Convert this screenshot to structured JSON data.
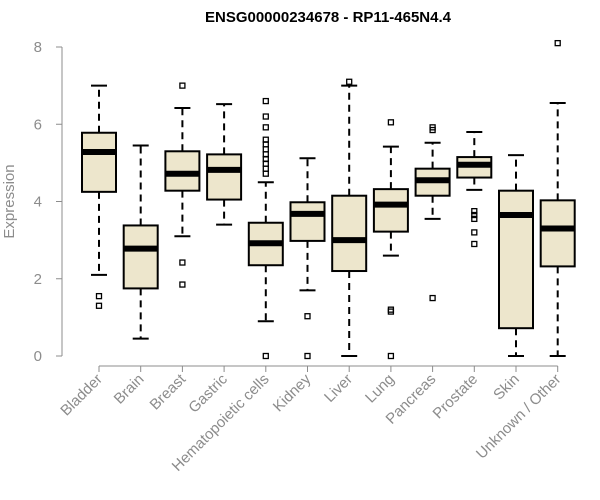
{
  "chart_data": {
    "type": "boxplot",
    "title": "ENSG00000234678 - RP11-465N4.4",
    "xlabel": "",
    "ylabel": "Expression",
    "ylim": [
      0,
      8
    ],
    "yticks": [
      0,
      2,
      4,
      6,
      8
    ],
    "grid": false,
    "box_fill": "#ede6cc",
    "median_color": "#000000",
    "axis_color": "#8c8c8c",
    "categories": [
      "Bladder",
      "Brain",
      "Breast",
      "Gastric",
      "Hematopoietic cells",
      "Kidney",
      "Liver",
      "Lung",
      "Pancreas",
      "Prostate",
      "Skin",
      "Unknown / Other"
    ],
    "boxes": [
      {
        "whisker_low": 2.1,
        "q1": 4.25,
        "median": 5.28,
        "q3": 5.78,
        "whisker_high": 7.0,
        "outliers": [
          1.55,
          1.3
        ]
      },
      {
        "whisker_low": 0.45,
        "q1": 1.75,
        "median": 2.78,
        "q3": 3.38,
        "whisker_high": 5.45,
        "outliers": []
      },
      {
        "whisker_low": 3.1,
        "q1": 4.28,
        "median": 4.72,
        "q3": 5.3,
        "whisker_high": 6.42,
        "outliers": [
          7.0,
          2.42,
          1.85
        ]
      },
      {
        "whisker_low": 3.4,
        "q1": 4.05,
        "median": 4.82,
        "q3": 5.22,
        "whisker_high": 6.52,
        "outliers": []
      },
      {
        "whisker_low": 0.9,
        "q1": 2.35,
        "median": 2.92,
        "q3": 3.45,
        "whisker_high": 4.5,
        "outliers": [
          6.6,
          6.2,
          5.92,
          5.6,
          5.48,
          5.35,
          5.22,
          5.1,
          4.98,
          4.85,
          4.72,
          0.0
        ]
      },
      {
        "whisker_low": 1.7,
        "q1": 2.98,
        "median": 3.68,
        "q3": 3.98,
        "whisker_high": 5.12,
        "outliers": [
          1.03,
          0.0
        ]
      },
      {
        "whisker_low": 0.0,
        "q1": 2.2,
        "median": 3.0,
        "q3": 4.15,
        "whisker_high": 7.0,
        "outliers": [
          7.1
        ]
      },
      {
        "whisker_low": 2.6,
        "q1": 3.22,
        "median": 3.92,
        "q3": 4.32,
        "whisker_high": 5.42,
        "outliers": [
          6.05,
          1.2,
          1.15,
          0.0
        ]
      },
      {
        "whisker_low": 3.55,
        "q1": 4.15,
        "median": 4.55,
        "q3": 4.85,
        "whisker_high": 5.52,
        "outliers": [
          5.92,
          5.85,
          1.5
        ]
      },
      {
        "whisker_low": 4.3,
        "q1": 4.62,
        "median": 4.95,
        "q3": 5.15,
        "whisker_high": 5.8,
        "outliers": [
          3.75,
          3.65,
          3.55,
          3.2,
          2.9
        ]
      },
      {
        "whisker_low": 0.0,
        "q1": 0.72,
        "median": 3.65,
        "q3": 4.28,
        "whisker_high": 5.2,
        "outliers": []
      },
      {
        "whisker_low": 0.0,
        "q1": 2.32,
        "median": 3.3,
        "q3": 4.03,
        "whisker_high": 6.55,
        "outliers": [
          8.1
        ]
      }
    ]
  }
}
